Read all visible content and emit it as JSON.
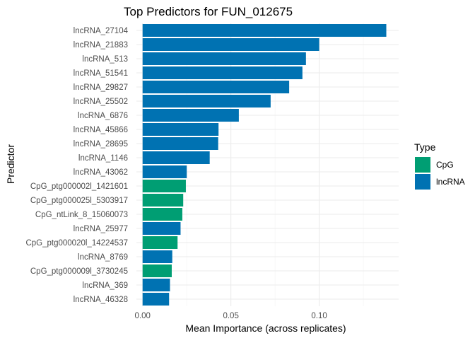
{
  "chart_data": {
    "type": "bar",
    "orientation": "horizontal",
    "title": "Top Predictors for FUN_012675",
    "xlabel": "Mean Importance (across replicates)",
    "ylabel": "Predictor",
    "xlim": [
      -0.0035,
      0.145
    ],
    "xticks": [
      0.0,
      0.05,
      0.1
    ],
    "xtick_labels": [
      "0.00",
      "0.05",
      "0.10"
    ],
    "grid": true,
    "legend": {
      "title": "Type",
      "position": "right",
      "entries": [
        {
          "name": "CpG",
          "color": "#009E73"
        },
        {
          "name": "lncRNA",
          "color": "#0072B2"
        }
      ]
    },
    "categories": [
      "lncRNA_27104",
      "lncRNA_21883",
      "lncRNA_513",
      "lncRNA_51541",
      "lncRNA_29827",
      "lncRNA_25502",
      "lncRNA_6876",
      "lncRNA_45866",
      "lncRNA_28695",
      "lncRNA_1146",
      "lncRNA_43062",
      "CpG_ptg000002l_1421601",
      "CpG_ptg000025l_5303917",
      "CpG_ntLink_8_15060073",
      "lncRNA_25977",
      "CpG_ptg000020l_14224537",
      "lncRNA_8769",
      "CpG_ptg000009l_3730245",
      "lncRNA_369",
      "lncRNA_46328"
    ],
    "values": [
      0.138,
      0.1,
      0.0925,
      0.0905,
      0.083,
      0.0725,
      0.0545,
      0.043,
      0.0428,
      0.038,
      0.025,
      0.0245,
      0.023,
      0.0225,
      0.0215,
      0.0198,
      0.0168,
      0.0165,
      0.0155,
      0.015
    ],
    "types": [
      "lncRNA",
      "lncRNA",
      "lncRNA",
      "lncRNA",
      "lncRNA",
      "lncRNA",
      "lncRNA",
      "lncRNA",
      "lncRNA",
      "lncRNA",
      "lncRNA",
      "CpG",
      "CpG",
      "CpG",
      "lncRNA",
      "CpG",
      "lncRNA",
      "CpG",
      "lncRNA",
      "lncRNA"
    ]
  }
}
